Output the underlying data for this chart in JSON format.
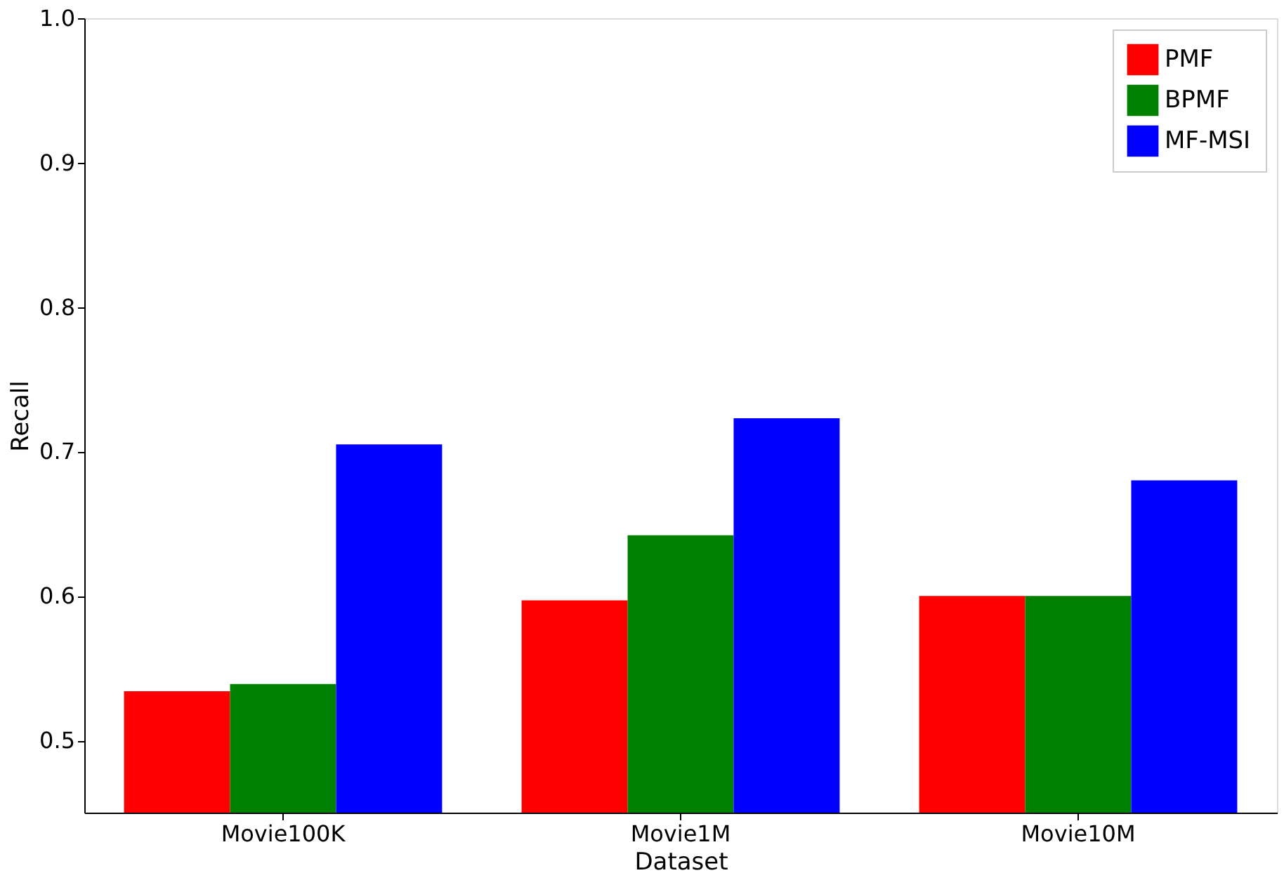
{
  "chart_data": {
    "type": "bar",
    "xlabel": "Dataset",
    "ylabel": "Recall",
    "categories": [
      "Movie100K",
      "Movie1M",
      "Movie10M"
    ],
    "series": [
      {
        "name": "PMF",
        "color": "#ff0000",
        "values": [
          0.534,
          0.597,
          0.6
        ]
      },
      {
        "name": "BPMF",
        "color": "#008000",
        "values": [
          0.539,
          0.642,
          0.6
        ]
      },
      {
        "name": "MF-MSI",
        "color": "#0000ff",
        "values": [
          0.705,
          0.723,
          0.68
        ]
      }
    ],
    "ylim": [
      0.45,
      1.0
    ],
    "yticks": [
      0.5,
      0.6,
      0.7,
      0.8,
      0.9,
      {
        "value": 1.0,
        "label": "1.0"
      }
    ],
    "grid": false,
    "legend": "top right"
  }
}
